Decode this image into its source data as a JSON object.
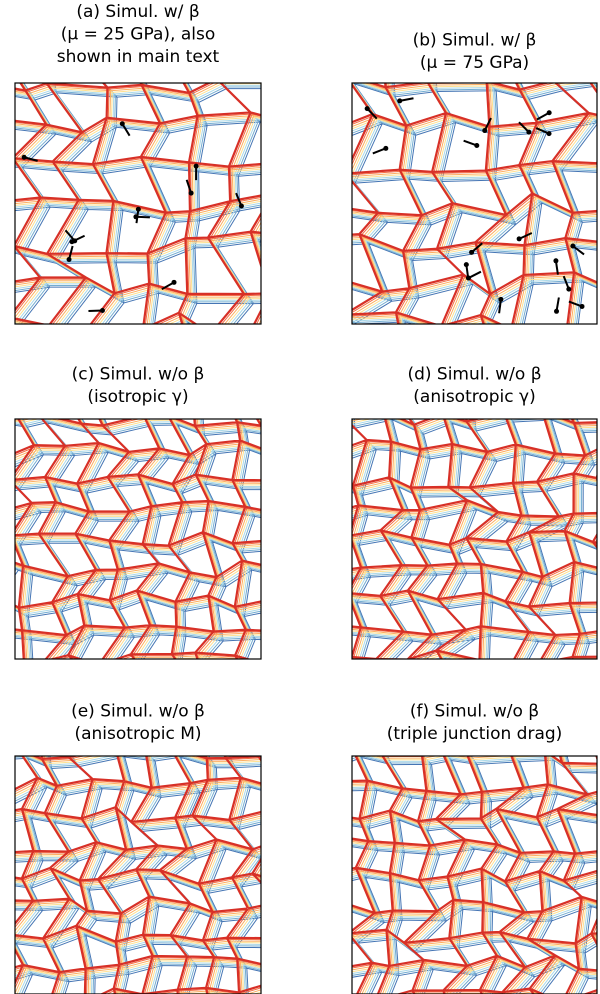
{
  "panels": [
    {
      "title": [
        "(a) Simul. w/ β",
        "(μ = 25 GPa), also",
        "shown in main text"
      ]
    },
    {
      "title": [
        "(b) Simul. w/ β",
        "(μ = 75 GPa)"
      ]
    },
    {
      "title": [
        "(c) Simul. w/o β",
        "(isotropic γ)"
      ]
    },
    {
      "title": [
        "(d) Simul. w/o β",
        "(anisotropic γ)"
      ]
    },
    {
      "title": [
        "(e) Simul. w/o β",
        "(anisotropic M)"
      ]
    },
    {
      "title": [
        "(f) Simul. w/o β",
        "(triple junction drag)"
      ]
    }
  ]
}
